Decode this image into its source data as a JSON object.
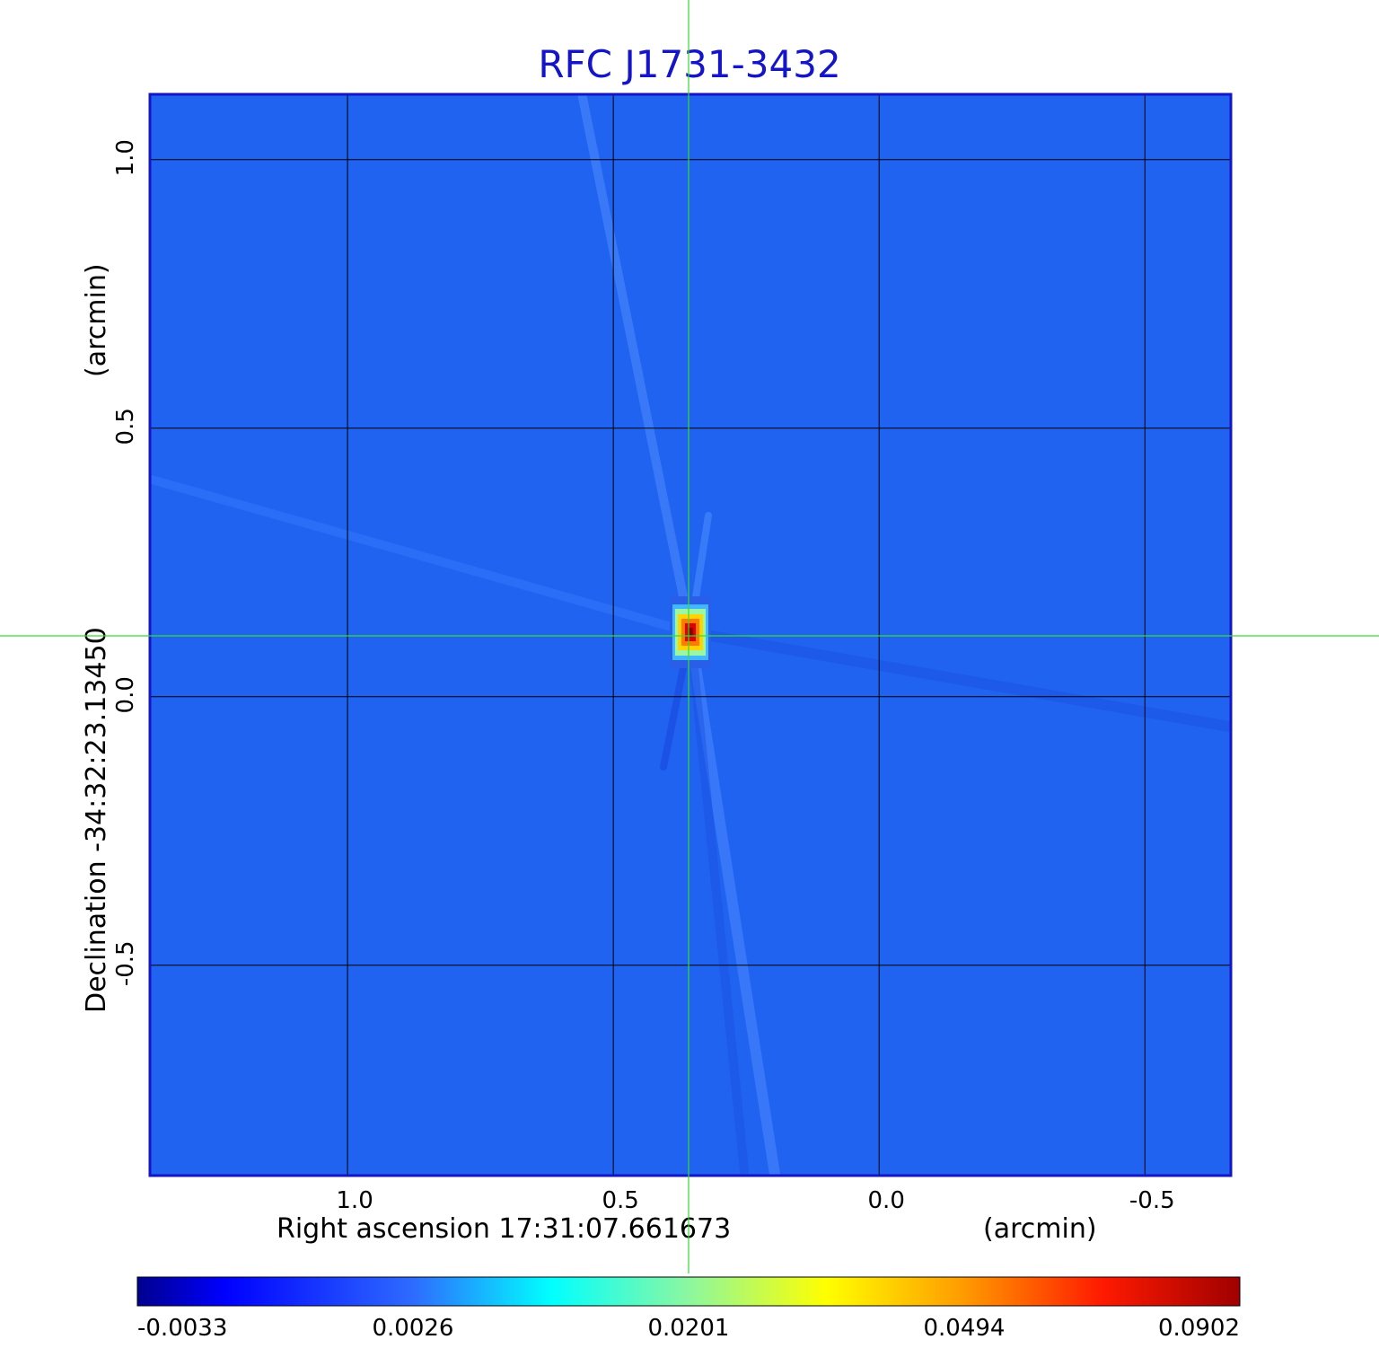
{
  "chart_data": {
    "type": "heatmap",
    "title": "RFC J1731-3432",
    "xlabel": "Right ascension  17:31:07.661673",
    "xunit": "(arcmin)",
    "ylabel": "Declination  -34:32:23.13450",
    "yunit": "(arcmin)",
    "xlim": [
      1.37,
      -0.66
    ],
    "ylim": [
      -0.89,
      1.12
    ],
    "xticks": [
      1.0,
      0.5,
      0.0,
      -0.5
    ],
    "xtick_labels": [
      "1.0",
      "0.5",
      "0.0",
      "-0.5"
    ],
    "yticks": [
      1.0,
      0.5,
      0.0,
      -0.5
    ],
    "ytick_labels": [
      "1.0",
      "0.5",
      "0.0",
      "-0.5"
    ],
    "grid": true,
    "crosshair": {
      "x": 0.355,
      "y": 0.113,
      "color": "#33dd33"
    },
    "source_peak": {
      "x": 0.355,
      "y": 0.12,
      "value": 0.0902
    },
    "colorbar": {
      "position": "bottom",
      "colormap": "jet",
      "ticks": [
        -0.0033,
        0.0026,
        0.0201,
        0.0494,
        0.0902
      ],
      "tick_labels": [
        "-0.0033",
        "0.0026",
        "0.0201",
        "0.0494",
        "0.0902"
      ]
    }
  },
  "colors": {
    "background_map": "#1f63f0",
    "frame": "#1414c8",
    "grid": "#000000",
    "crosshair": "#33dd33",
    "colormap_stops": [
      "#00008f",
      "#0000ff",
      "#2e6bff",
      "#00ffff",
      "#ffff00",
      "#ff7f00",
      "#ff0000",
      "#7f0000"
    ]
  }
}
